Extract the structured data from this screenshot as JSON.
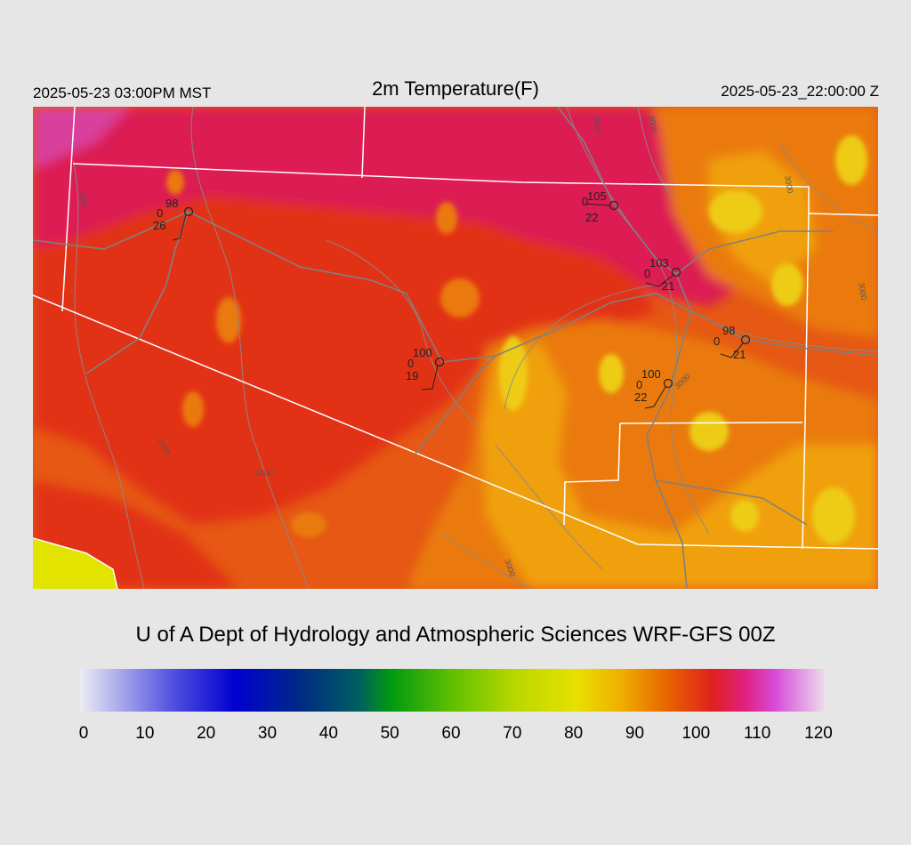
{
  "header": {
    "valid_local": "2025-05-23 03:00PM MST",
    "title": "2m Temperature(F)",
    "valid_utc": "2025-05-23_22:00:00 Z"
  },
  "credit": "U of A Dept of Hydrology and Atmospheric Sciences WRF-GFS 00Z",
  "colorbar": {
    "min": 0,
    "max": 120,
    "tick_labels": [
      "0",
      "10",
      "20",
      "30",
      "40",
      "50",
      "60",
      "70",
      "80",
      "90",
      "100",
      "110",
      "120"
    ],
    "stops": [
      {
        "value": 0,
        "color": "#ececf4"
      },
      {
        "value": 15,
        "color": "#5050e0"
      },
      {
        "value": 25,
        "color": "#0000d0"
      },
      {
        "value": 35,
        "color": "#002888"
      },
      {
        "value": 45,
        "color": "#006060"
      },
      {
        "value": 50,
        "color": "#009a10"
      },
      {
        "value": 60,
        "color": "#60c000"
      },
      {
        "value": 70,
        "color": "#b8d800"
      },
      {
        "value": 80,
        "color": "#e8e000"
      },
      {
        "value": 87,
        "color": "#f0b000"
      },
      {
        "value": 95,
        "color": "#e86000"
      },
      {
        "value": 102,
        "color": "#e02020"
      },
      {
        "value": 107,
        "color": "#e0207c"
      },
      {
        "value": 112,
        "color": "#d84ad8"
      },
      {
        "value": 120,
        "color": "#ecdcec"
      }
    ]
  },
  "map": {
    "palette": {
      "t86": "#eecc18",
      "t90": "#f0a010",
      "t94": "#ea7a10",
      "t98": "#e65814",
      "t102": "#e23018",
      "t106": "#dc1c52",
      "t110": "#d8409c"
    },
    "contour_labels": [
      "1000",
      "1000",
      "2000",
      "2000",
      "3000",
      "3000",
      "3000",
      "3000",
      "3000"
    ],
    "stations": [
      {
        "temp": "98",
        "dew": "26",
        "mid": "0"
      },
      {
        "temp": "105",
        "dew": "22",
        "mid": "0"
      },
      {
        "temp": "103",
        "dew": "21",
        "mid": "0"
      },
      {
        "temp": "98",
        "dew": "21",
        "mid": "0"
      },
      {
        "temp": "100",
        "dew": "19",
        "mid": "0"
      },
      {
        "temp": "100",
        "dew": "22",
        "mid": "0"
      }
    ]
  }
}
